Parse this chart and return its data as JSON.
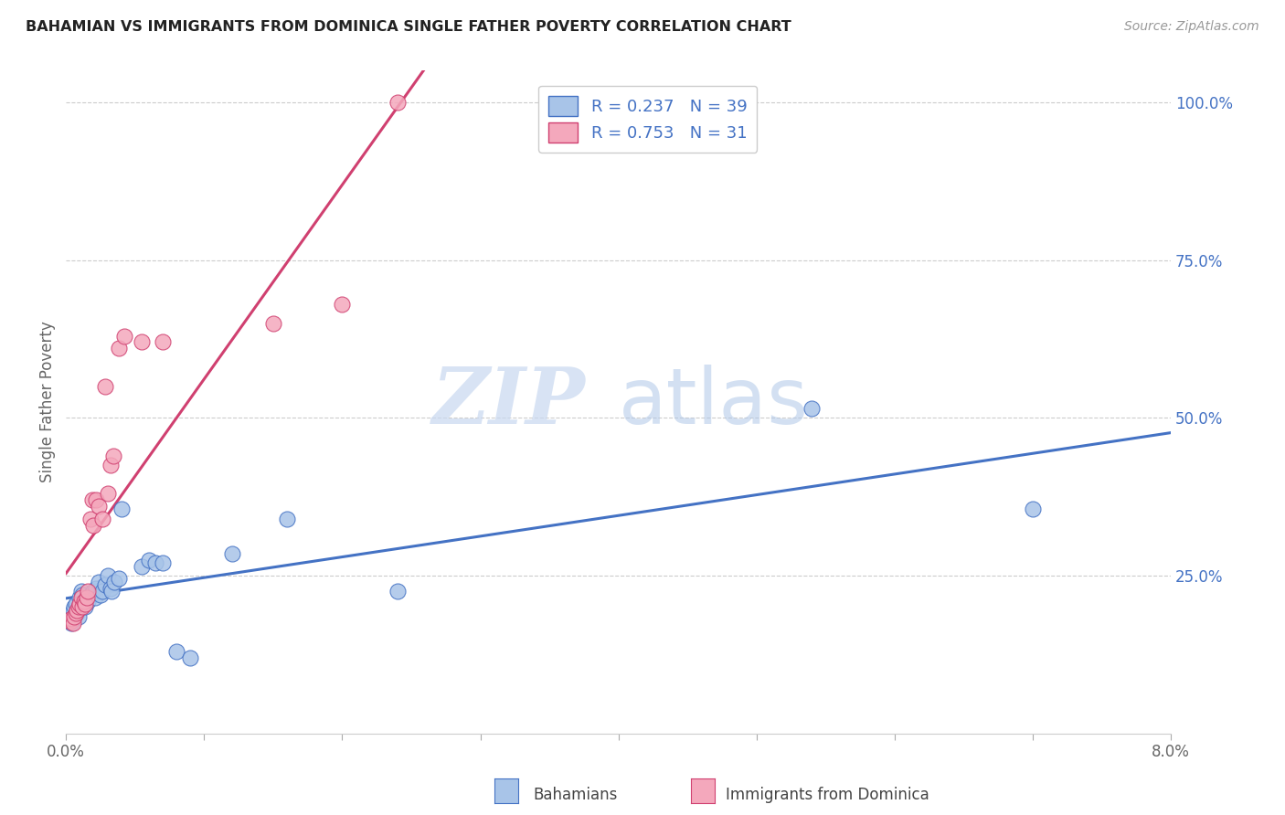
{
  "title": "BAHAMIAN VS IMMIGRANTS FROM DOMINICA SINGLE FATHER POVERTY CORRELATION CHART",
  "source": "Source: ZipAtlas.com",
  "ylabel": "Single Father Poverty",
  "legend_label1": "Bahamians",
  "legend_label2": "Immigrants from Dominica",
  "r1": 0.237,
  "n1": 39,
  "r2": 0.753,
  "n2": 31,
  "watermark_zip": "ZIP",
  "watermark_atlas": "atlas",
  "color_blue": "#a8c4e8",
  "color_pink": "#f4a8bc",
  "line_color_blue": "#4472c4",
  "line_color_pink": "#d04070",
  "text_color_blue": "#4472c4",
  "text_color_dark": "#333333",
  "bahamians_x": [
    0.0003,
    0.0004,
    0.0005,
    0.0006,
    0.0007,
    0.0008,
    0.0009,
    0.001,
    0.0011,
    0.0012,
    0.0013,
    0.0014,
    0.0015,
    0.0016,
    0.0018,
    0.002,
    0.0021,
    0.0022,
    0.0024,
    0.0025,
    0.0026,
    0.0028,
    0.003,
    0.0032,
    0.0033,
    0.0035,
    0.0038,
    0.004,
    0.0055,
    0.006,
    0.0065,
    0.007,
    0.008,
    0.009,
    0.012,
    0.016,
    0.024,
    0.054,
    0.07
  ],
  "bahamians_y": [
    0.18,
    0.175,
    0.195,
    0.2,
    0.205,
    0.19,
    0.185,
    0.215,
    0.225,
    0.22,
    0.21,
    0.2,
    0.215,
    0.21,
    0.22,
    0.225,
    0.215,
    0.23,
    0.24,
    0.22,
    0.225,
    0.235,
    0.25,
    0.23,
    0.225,
    0.24,
    0.245,
    0.355,
    0.265,
    0.275,
    0.27,
    0.27,
    0.13,
    0.12,
    0.285,
    0.34,
    0.225,
    0.515,
    0.355
  ],
  "dominica_x": [
    0.0003,
    0.0004,
    0.0005,
    0.0006,
    0.0007,
    0.0008,
    0.0009,
    0.001,
    0.0011,
    0.0012,
    0.0013,
    0.0014,
    0.0015,
    0.0016,
    0.0018,
    0.0019,
    0.002,
    0.0022,
    0.0024,
    0.0026,
    0.0028,
    0.003,
    0.0032,
    0.0034,
    0.0038,
    0.0042,
    0.0055,
    0.007,
    0.015,
    0.02,
    0.024
  ],
  "dominica_y": [
    0.178,
    0.182,
    0.175,
    0.185,
    0.19,
    0.195,
    0.2,
    0.205,
    0.215,
    0.2,
    0.21,
    0.205,
    0.215,
    0.225,
    0.34,
    0.37,
    0.33,
    0.37,
    0.36,
    0.34,
    0.55,
    0.38,
    0.425,
    0.44,
    0.61,
    0.63,
    0.62,
    0.62,
    0.65,
    0.68,
    1.0
  ],
  "xmin": 0.0,
  "xmax": 0.08,
  "ymin": 0.0,
  "ymax": 1.05,
  "yticks": [
    0.25,
    0.5,
    0.75,
    1.0
  ],
  "xticks_show": [
    0.0,
    0.08
  ]
}
